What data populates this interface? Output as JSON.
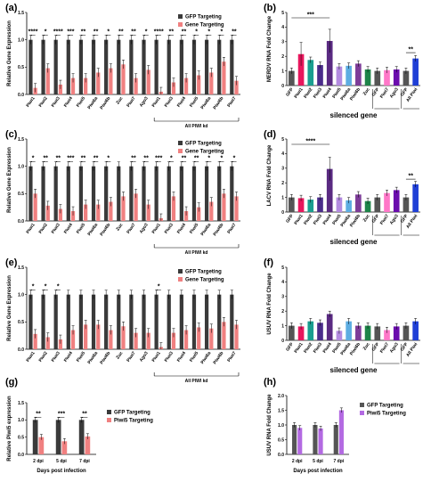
{
  "colors": {
    "gfp": "#3a3a3a",
    "gene": "#f08080",
    "piwi5": "#f08080",
    "gfp_h": "#555555",
    "piwi5_h": "#b36ae2"
  },
  "chart_data": [
    {
      "panel": "(a)",
      "type": "bar",
      "categories": [
        "Piwi1",
        "Piwi2",
        "Piwi3",
        "Piwi4",
        "Piwi5",
        "Piwi6a",
        "Piwi6b",
        "Zuc",
        "Piwi7",
        "Ago3",
        "Piwi1",
        "Piwi3",
        "Piwi4",
        "Piwi5",
        "Piwi6a",
        "Piwi6b",
        "Piwi7"
      ],
      "series": [
        {
          "name": "GFP Targeting",
          "values": [
            1,
            1,
            1,
            1,
            1,
            1,
            1,
            1,
            1,
            1,
            1,
            1,
            1,
            1,
            1,
            1,
            1
          ]
        },
        {
          "name": "Gene Targeting",
          "values": [
            0.12,
            0.48,
            0.18,
            0.3,
            0.3,
            0.4,
            0.48,
            0.55,
            0.3,
            0.45,
            0.05,
            0.22,
            0.3,
            0.35,
            0.4,
            0.6,
            0.25
          ]
        }
      ],
      "stars": [
        "****",
        "*",
        "****",
        "***",
        "**",
        "**",
        "*",
        "**",
        "**",
        "*",
        "****",
        "**",
        "**",
        "*",
        "*",
        "*",
        "**"
      ],
      "ylabel": "Relative Gene Expression",
      "ylim": [
        0,
        1.5
      ],
      "yticks": [
        "0.0",
        "0.5",
        "1.0",
        "1.5"
      ],
      "group_label": "All PIWI kd"
    },
    {
      "panel": "(c)",
      "type": "bar",
      "categories": [
        "Piwi1",
        "Piwi2",
        "Piwi3",
        "Piwi4",
        "Piwi5",
        "Piwi6a",
        "Piwi6b",
        "Zuc",
        "Piwi7",
        "Ago3",
        "Piwi1",
        "Piwi3",
        "Piwi4",
        "Piwi5",
        "Piwi6a",
        "Piwi6b",
        "Piwi7"
      ],
      "series": [
        {
          "name": "GFP Targeting",
          "values": [
            1,
            1,
            1,
            1,
            1,
            1,
            1,
            1,
            1,
            1,
            1,
            1,
            1,
            1,
            1,
            1,
            1
          ]
        },
        {
          "name": "Gene Targeting",
          "values": [
            0.5,
            0.28,
            0.22,
            0.18,
            0.3,
            0.3,
            0.35,
            0.45,
            0.5,
            0.3,
            0.05,
            0.45,
            0.18,
            0.25,
            0.35,
            0.5,
            0.45
          ]
        }
      ],
      "stars": [
        "*",
        "**",
        "**",
        "***",
        "**",
        "**",
        "*",
        "",
        "**",
        "**",
        "***",
        "*",
        "**",
        "**",
        "*",
        "*",
        "*"
      ],
      "ylabel": "Relative Gene Expression",
      "ylim": [
        0,
        1.5
      ],
      "yticks": [
        "0.0",
        "0.5",
        "1.0",
        "1.5"
      ],
      "group_label": "All PIWI kd"
    },
    {
      "panel": "(e)",
      "type": "bar",
      "categories": [
        "Piwi1",
        "Piwi2",
        "Piwi3",
        "Piwi4",
        "Piwi5",
        "Piwi6a",
        "Piwi6b",
        "Zuc",
        "Piwi7",
        "Ago3",
        "Piwi1",
        "Piwi3",
        "Piwi4",
        "Piwi5",
        "Piwi6a",
        "Piwi6b",
        "Piwi7"
      ],
      "series": [
        {
          "name": "GFP Targeting",
          "values": [
            1,
            1,
            1,
            1,
            1,
            1,
            1,
            1,
            1,
            1,
            1,
            1,
            1,
            1,
            1,
            1,
            1
          ]
        },
        {
          "name": "Gene Targeting",
          "values": [
            0.28,
            0.22,
            0.18,
            0.35,
            0.45,
            0.45,
            0.35,
            0.42,
            0.3,
            0.3,
            0.04,
            0.3,
            0.35,
            0.4,
            0.38,
            0.5,
            0.45
          ]
        }
      ],
      "stars": [
        "*",
        "*",
        "*",
        "",
        "",
        "",
        "",
        "",
        "",
        "",
        "*",
        "",
        "",
        "",
        "",
        "",
        ""
      ],
      "ylabel": "Relative Gene Expression",
      "ylim": [
        0,
        1.5
      ],
      "yticks": [
        "0.0",
        "0.5",
        "1.0",
        "1.5"
      ],
      "group_label": "All PIWI kd"
    },
    {
      "panel": "(b)",
      "type": "bar",
      "categories": [
        "GFP",
        "Piwi1",
        "Piwi2",
        "Piwi3",
        "Piwi4",
        "Piwi5",
        "Piwi6a",
        "Piwi6b",
        "Zuc",
        "GFP",
        "Piwi7",
        "Ago3",
        "GFP",
        "All Piwi"
      ],
      "values": [
        1.0,
        2.15,
        1.75,
        1.4,
        3.05,
        1.3,
        1.35,
        1.5,
        1.1,
        1.0,
        1.05,
        1.1,
        1.0,
        1.85
      ],
      "colors": [
        "#555555",
        "#e8175d",
        "#1a9e8f",
        "#4a2c8a",
        "#5a2a82",
        "#b38be0",
        "#5dade2",
        "#7d3c98",
        "#1e8449",
        "#555555",
        "#ff77c8",
        "#6a0dad",
        "#555555",
        "#1f3fd6"
      ],
      "ylabel": "MERDV RNA Fold Change",
      "ylim": [
        0,
        5
      ],
      "yticks": [
        "0",
        "1",
        "2",
        "3",
        "4",
        "5"
      ],
      "xlabel": "silenced gene",
      "brackets": [
        {
          "label": "***"
        },
        {
          "label": "**"
        }
      ]
    },
    {
      "panel": "(d)",
      "type": "bar",
      "categories": [
        "GFP",
        "Piwi1",
        "Piwi2",
        "Piwi3",
        "Piwi4",
        "Piwi5",
        "Piwi6a",
        "Piwi6b",
        "Zuc",
        "GFP",
        "Piwi7",
        "Ago3",
        "GFP",
        "All Piwi"
      ],
      "values": [
        1.0,
        0.95,
        0.85,
        1.0,
        2.95,
        1.0,
        0.8,
        1.2,
        0.75,
        1.0,
        1.3,
        1.5,
        1.0,
        1.9
      ],
      "colors": [
        "#555555",
        "#e8175d",
        "#1a9e8f",
        "#4a2c8a",
        "#5a2a82",
        "#b38be0",
        "#5dade2",
        "#7d3c98",
        "#1e8449",
        "#555555",
        "#ff77c8",
        "#6a0dad",
        "#555555",
        "#1f3fd6"
      ],
      "ylabel": "LACV RNA Fold Change",
      "ylim": [
        0,
        5
      ],
      "yticks": [
        "0",
        "1",
        "2",
        "3",
        "4",
        "5"
      ],
      "xlabel": "silenced gene",
      "brackets": [
        {
          "label": "****"
        },
        {
          "label": "**"
        }
      ]
    },
    {
      "panel": "(f)",
      "type": "bar",
      "categories": [
        "GFP",
        "Piwi1",
        "Piwi2",
        "Piwi3",
        "Piwi4",
        "Piwi5",
        "Piwi6a",
        "Piwi6b",
        "Zuc",
        "GFP",
        "Piwi7",
        "Ago3",
        "GFP",
        "All Piwi"
      ],
      "values": [
        1.0,
        0.95,
        1.3,
        1.2,
        1.8,
        0.65,
        1.3,
        1.0,
        1.0,
        0.95,
        0.7,
        0.95,
        1.0,
        1.3
      ],
      "colors": [
        "#555555",
        "#e8175d",
        "#1a9e8f",
        "#4a2c8a",
        "#5a2a82",
        "#b38be0",
        "#5dade2",
        "#7d3c98",
        "#1e8449",
        "#555555",
        "#ff77c8",
        "#6a0dad",
        "#555555",
        "#1f3fd6"
      ],
      "ylabel": "USUV RNA Fold Change",
      "ylim": [
        0,
        5
      ],
      "yticks": [
        "0",
        "1",
        "2",
        "3",
        "4",
        "5"
      ],
      "xlabel": "silenced gene",
      "brackets": []
    },
    {
      "panel": "(g)",
      "type": "bar",
      "categories": [
        "2 dpi",
        "5 dpi",
        "7 dpi"
      ],
      "series": [
        {
          "name": "GFP Targeting",
          "values": [
            1,
            1,
            1
          ]
        },
        {
          "name": "Piwi5 Targeting",
          "values": [
            0.5,
            0.38,
            0.52
          ]
        }
      ],
      "stars": [
        "**",
        "***",
        "**"
      ],
      "ylabel": "Relative Piwi5 expression",
      "ylim": [
        0,
        1.5
      ],
      "yticks": [
        "0.0",
        "0.5",
        "1.0",
        "1.5"
      ],
      "xlabel": "Days post infection"
    },
    {
      "panel": "(h)",
      "type": "bar",
      "categories": [
        "2 dpi",
        "5 dpi",
        "7 dpi"
      ],
      "series": [
        {
          "name": "GFP Targeting",
          "values": [
            1,
            1,
            1
          ]
        },
        {
          "name": "Piwi5 Targeting",
          "values": [
            0.9,
            0.88,
            1.5
          ]
        }
      ],
      "ylabel": "USUV RNA Fold Change",
      "ylim": [
        0,
        2
      ],
      "yticks": [
        "0.0",
        "0.5",
        "1.0",
        "1.5",
        "2.0"
      ],
      "xlabel": "Days post infection"
    }
  ]
}
